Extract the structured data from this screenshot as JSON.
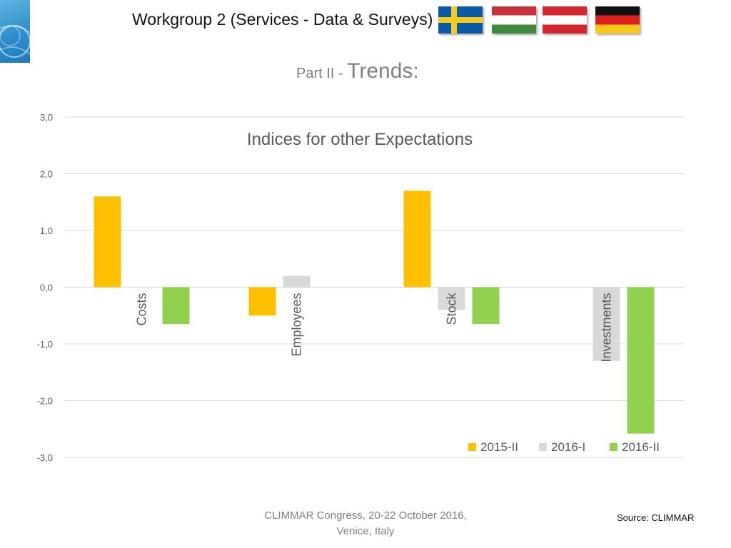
{
  "header": {
    "title": "Workgroup 2 (Services - Data & Surveys)",
    "flags": [
      "sweden-flag",
      "hungary-flag",
      "austria-flag",
      "germany-flag"
    ]
  },
  "subtitle": {
    "prefix": "Part II - ",
    "main": "Trends:"
  },
  "chart_data": {
    "type": "bar",
    "title": "Indices for other Expectations",
    "categories": [
      "Costs",
      "Employees",
      "Stock",
      "Investments"
    ],
    "series": [
      {
        "name": "2015-II",
        "values": [
          1.6,
          -0.5,
          1.7,
          0
        ],
        "color": "#FFC000"
      },
      {
        "name": "2016-I",
        "values": [
          0,
          0.2,
          -0.4,
          -1.3
        ],
        "color": "#D9D9D9"
      },
      {
        "name": "2016-II",
        "values": [
          -0.65,
          0,
          -0.65,
          -2.58
        ],
        "color": "#92D050"
      }
    ],
    "ylim": [
      -3,
      3
    ],
    "yticks": [
      3,
      2,
      1,
      0,
      -1,
      -2,
      -3
    ],
    "ytick_labels": [
      "3,0",
      "2,0",
      "1,0",
      "0,0",
      "-1,0",
      "-2,0",
      "-3,0"
    ],
    "grid": true,
    "legend": "bottom-right"
  },
  "footer": {
    "line1": "CLIMMAR Congress, 20-22 October 2016,",
    "line2": "Venice, Italy"
  },
  "source": "Source: CLIMMAR"
}
